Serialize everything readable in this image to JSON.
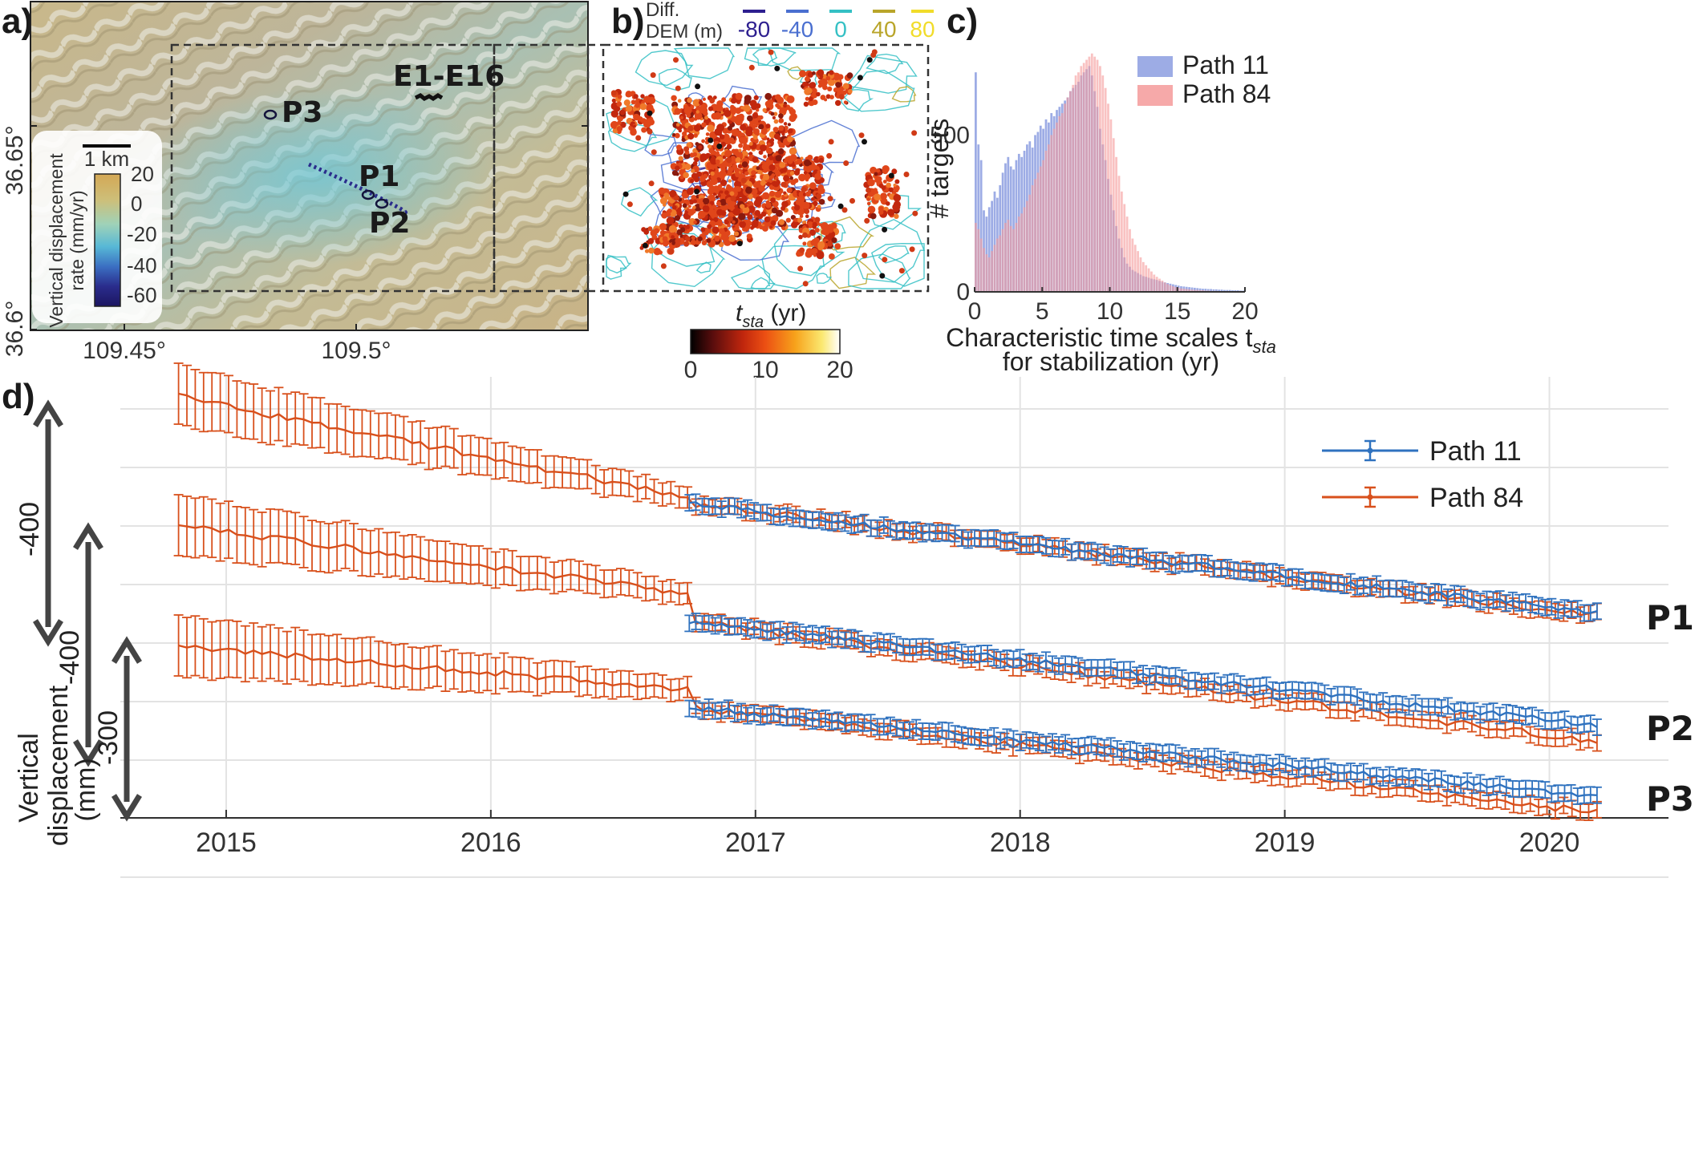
{
  "panels": {
    "a": "a)",
    "b": "b)",
    "c": "c)",
    "d": "d)"
  },
  "map": {
    "lat_ticks": [
      "36.65°",
      "36.6°"
    ],
    "lon_ticks": [
      "109.45°",
      "109.5°"
    ],
    "points": [
      "P3",
      "P1",
      "P2",
      "E1-E16"
    ],
    "scalebar": "1 km",
    "colorbar": {
      "title_line1": "Vertical displacement",
      "title_line2": "rate (mm/yr)",
      "ticks": [
        "20",
        "0",
        "-20",
        "-40",
        "-60"
      ],
      "colors": [
        "#d4a855",
        "#cdbf7a",
        "#9fd2b8",
        "#57b8d6",
        "#3b6fc2",
        "#2a2c8c",
        "#1c1661"
      ]
    }
  },
  "panel_b": {
    "legend_title_1": "Diff.",
    "legend_title_2": "DEM (m)",
    "contours": [
      {
        "label": "-80",
        "color": "#2d1f8f"
      },
      {
        "label": "-40",
        "color": "#4a6fd0"
      },
      {
        "label": "0",
        "color": "#34c0c4"
      },
      {
        "label": "40",
        "color": "#b9a52a"
      },
      {
        "label": "80",
        "color": "#f1dc2a"
      }
    ],
    "colorbar_ticks": [
      "0",
      "10",
      "20"
    ],
    "colorbar_label": "t",
    "colorbar_sub": "sta",
    "colorbar_unit": " (yr)",
    "colorbar_colors": [
      "#000000",
      "#5a0d0d",
      "#c0260d",
      "#ec4f13",
      "#f7a21b",
      "#fbe870",
      "#ffffff"
    ]
  },
  "chart_data": [
    {
      "type": "bar",
      "panel": "c",
      "xlabel_line1": "Characteristic time scales t",
      "xlabel_sub": "sta",
      "xlabel_line2": "for stabilization (yr)",
      "ylabel": "# targets",
      "xlim": [
        0,
        20
      ],
      "ylim": [
        0,
        790
      ],
      "xticks": [
        "0",
        "5",
        "10",
        "15",
        "20"
      ],
      "yticks": [
        "0",
        "500"
      ],
      "bin_width": 0.2,
      "series": [
        {
          "name": "Path 11",
          "color": "#8c9ee0",
          "values": [
            700,
            470,
            420,
            260,
            240,
            270,
            290,
            320,
            300,
            340,
            380,
            410,
            430,
            400,
            390,
            420,
            440,
            430,
            450,
            470,
            480,
            460,
            500,
            510,
            530,
            520,
            550,
            540,
            570,
            560,
            580,
            590,
            600,
            610,
            620,
            640,
            650,
            660,
            670,
            690,
            700,
            710,
            720,
            690,
            640,
            590,
            520,
            470,
            420,
            360,
            310,
            260,
            210,
            170,
            140,
            110,
            90,
            80,
            70,
            65,
            60,
            55,
            50,
            48,
            45,
            42,
            40,
            38,
            35,
            32,
            30,
            28,
            26,
            24,
            22,
            20,
            18,
            17,
            16,
            15,
            14,
            13,
            12,
            11,
            10,
            10,
            9,
            9,
            8,
            8,
            7,
            7,
            6,
            6,
            6,
            5,
            5,
            5,
            4,
            4
          ]
        },
        {
          "name": "Path 84",
          "color": "#f59a9a",
          "values": [
            220,
            200,
            170,
            140,
            120,
            110,
            130,
            150,
            170,
            180,
            200,
            220,
            230,
            210,
            200,
            220,
            240,
            250,
            270,
            290,
            310,
            340,
            360,
            380,
            400,
            420,
            450,
            470,
            500,
            520,
            540,
            560,
            570,
            600,
            620,
            640,
            660,
            690,
            700,
            720,
            730,
            740,
            750,
            760,
            750,
            740,
            720,
            690,
            650,
            600,
            550,
            490,
            430,
            370,
            320,
            280,
            240,
            200,
            170,
            150,
            130,
            110,
            95,
            85,
            75,
            65,
            55,
            48,
            42,
            36,
            30,
            25,
            21,
            18,
            15,
            13,
            11,
            10,
            9,
            8,
            7,
            6,
            6,
            5,
            5,
            4,
            4,
            3,
            3,
            3,
            2,
            2,
            2,
            2,
            1,
            1,
            1,
            1,
            1,
            1
          ]
        }
      ]
    },
    {
      "type": "line",
      "panel": "d",
      "ylabel_1": "Vertical",
      "ylabel_2": "displacement",
      "ylabel_3": "(mm)",
      "xlim": [
        2014.6,
        2020.45
      ],
      "xticks": [
        "2015",
        "2016",
        "2017",
        "2018",
        "2019",
        "2020"
      ],
      "scale_bars": [
        "-400",
        "-400",
        "-300"
      ],
      "start_p84": 2014.82,
      "start_p11": 2016.75,
      "end": 2020.18,
      "series": [
        {
          "name": "Path 11",
          "color": "#2f72bf"
        },
        {
          "name": "Path 84",
          "color": "#d8501c"
        }
      ],
      "profiles": [
        {
          "name": "P1",
          "y84_start": 495,
          "y84_mid": 620,
          "y11_start": 628,
          "y_end": 765,
          "end_gap": 2
        },
        {
          "name": "P2",
          "y84_start": 655,
          "y84_mid": 740,
          "y11_start": 775,
          "y_end": 905,
          "end_gap": 20
        },
        {
          "name": "P3",
          "y84_start": 805,
          "y84_mid": 860,
          "y11_start": 882,
          "y_end": 993,
          "end_gap": 20
        }
      ]
    }
  ]
}
